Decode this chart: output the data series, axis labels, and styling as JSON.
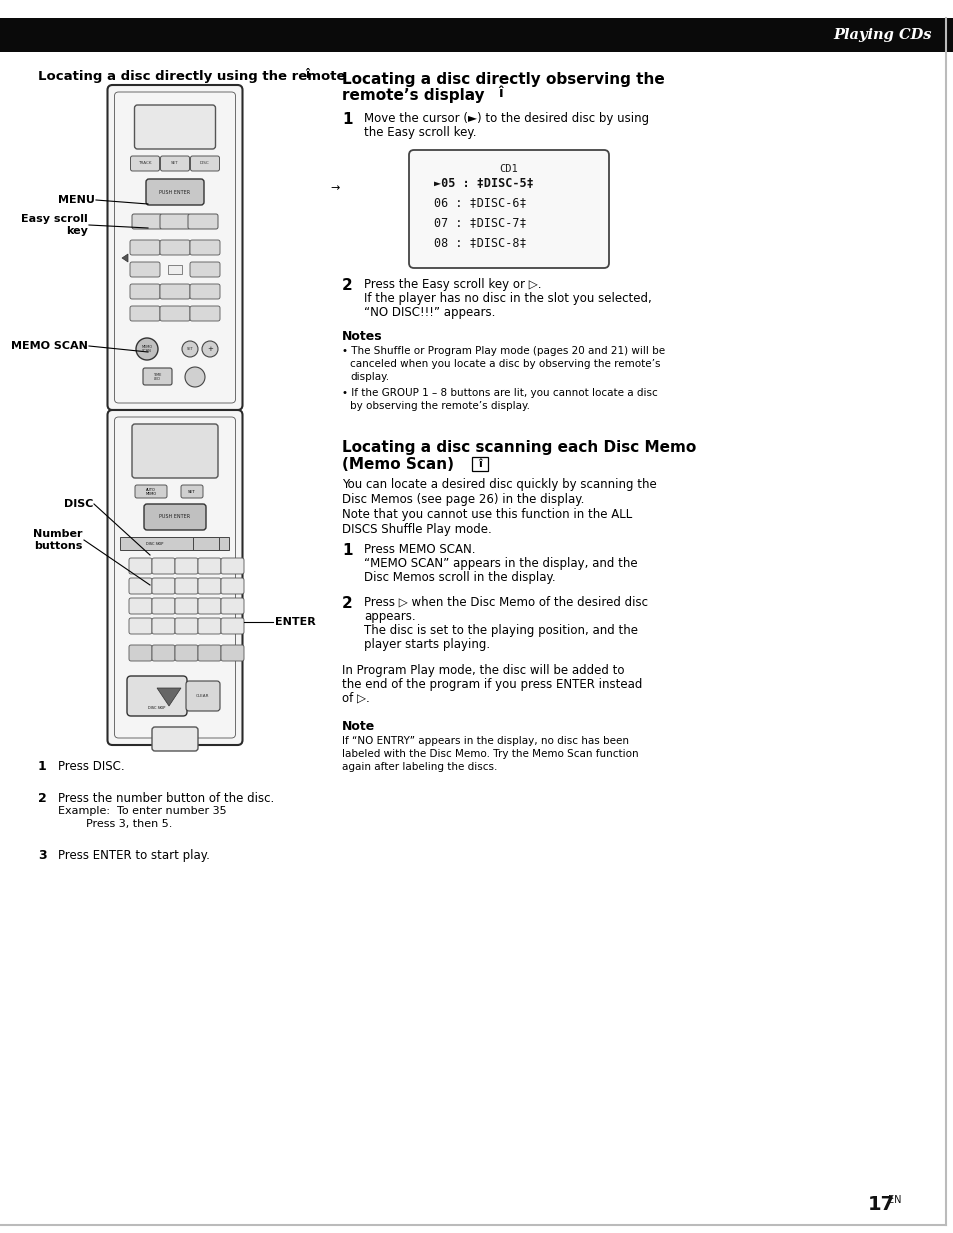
{
  "page_bg": "#ffffff",
  "header_bg": "#0a0a0a",
  "header_text": "Playing CDs",
  "header_text_color": "#ffffff",
  "left_section_title": "Locating a disc directly using the remote",
  "left_steps": [
    {
      "num": "1",
      "text": "Press DISC."
    },
    {
      "num": "2",
      "text": "Press the number button of the disc.\nExample:  To enter number 35\n                  Press 3, then 5."
    },
    {
      "num": "3",
      "text": "Press ENTER to start play."
    }
  ],
  "right_section1_title_line1": "Locating a disc directly observing the",
  "right_section1_title_line2": "remote’s display",
  "right_section1_steps": [
    {
      "num": "1",
      "text": "Move the cursor (►) to the desired disc by using\nthe Easy scroll key."
    },
    {
      "num": "2",
      "text": "Press the Easy scroll key or ▷.\n        If the player has no disc in the slot you selected,\n        “NO DISC!!!” appears."
    }
  ],
  "right_notes1_title": "Notes",
  "right_notes1": [
    "•  The Shuffle or Program Play mode (pages 20 and 21) will be\n    canceled when you locate a disc by observing the remote’s\n    display.",
    "•  If the GROUP 1 – 8 buttons are lit, you cannot locate a disc\n    by observing the remote’s display."
  ],
  "display_header": "CD1",
  "display_lines": [
    "►05 : ‡DISC-5‡",
    "06 : ‡DISC-6‡",
    "07 : ‡DISC-7‡",
    "08 : ‡DISC-8‡"
  ],
  "right_section2_title_line1": "Locating a disc scanning each Disc Memo",
  "right_section2_title_line2": "(Memo Scan)",
  "right_section2_intro": "You can locate a desired disc quickly by scanning the\nDisc Memos (see page 26) in the display.\nNote that you cannot use this function in the ALL\nDISCS Shuffle Play mode.",
  "right_section2_steps": [
    {
      "num": "1",
      "text": "Press MEMO SCAN.\n        “MEMO SCAN” appears in the display, and the\n        Disc Memos scroll in the display."
    },
    {
      "num": "2",
      "text": "Press ▷ when the Disc Memo of the desired disc\n        appears.\n        The disc is set to the playing position, and the\n        player starts playing."
    }
  ],
  "right_section2_extra": "In Program Play mode, the disc will be added to\nthe end of the program if you press ENTER instead\nof ▷.",
  "right_note2_title": "Note",
  "right_note2": "If “NO ENTRY” appears in the display, no disc has been\nlabeled with the Disc Memo. Try the Memo Scan function\nagain after labeling the discs.",
  "page_number": "17",
  "page_number_sup": "EN"
}
